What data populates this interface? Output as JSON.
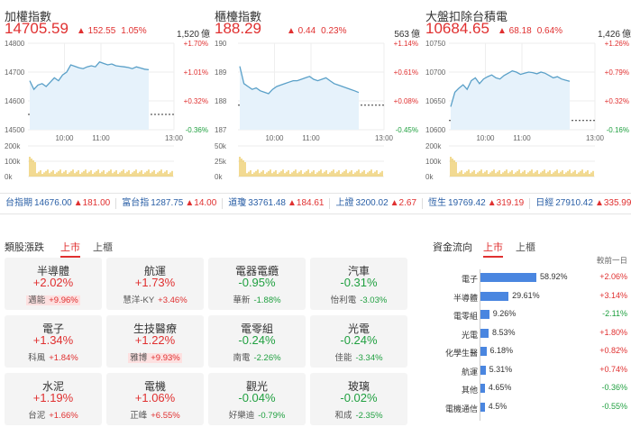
{
  "panels": [
    {
      "name": "加權指數",
      "price": "14705.59",
      "change": "▲ 152.55",
      "pct": "1.05%",
      "volume": "1,520",
      "volume_unit": "億",
      "price_axis": [
        "14800",
        "14700",
        "14600",
        "14500"
      ],
      "pct_axis": [
        "+1.70%",
        "+1.01%",
        "+0.32%",
        "-0.36%"
      ],
      "vol_axis": [
        "200k",
        "100k",
        "0k"
      ],
      "time_axis": [
        "10:00",
        "11:00",
        "13:00"
      ],
      "ymin": 14500,
      "ymax": 14800,
      "ref": 14553,
      "series": [
        14670,
        14640,
        14655,
        14660,
        14650,
        14665,
        14680,
        14670,
        14690,
        14700,
        14725,
        14720,
        14715,
        14712,
        14718,
        14722,
        14718,
        14735,
        14730,
        14725,
        14728,
        14722,
        14720,
        14718,
        14716,
        14712,
        14718,
        14714,
        14710,
        14708
      ]
    },
    {
      "name": "櫃檯指數",
      "price": "188.29",
      "change": "▲ 0.44",
      "pct": "0.23%",
      "volume": "563",
      "volume_unit": "億",
      "price_axis": [
        "190",
        "189",
        "188",
        "187"
      ],
      "pct_axis": [
        "+1.14%",
        "+0.61%",
        "+0.08%",
        "-0.45%"
      ],
      "vol_axis": [
        "50k",
        "25k",
        "0k"
      ],
      "time_axis": [
        "10:00",
        "11:00",
        "13:00"
      ],
      "ymin": 187,
      "ymax": 190,
      "ref": 187.85,
      "series": [
        189.2,
        188.6,
        188.5,
        188.4,
        188.45,
        188.35,
        188.3,
        188.25,
        188.4,
        188.5,
        188.55,
        188.6,
        188.65,
        188.7,
        188.7,
        188.75,
        188.8,
        188.85,
        188.75,
        188.7,
        188.75,
        188.8,
        188.7,
        188.6,
        188.55,
        188.5,
        188.45,
        188.4,
        188.35,
        188.29
      ]
    },
    {
      "name": "大盤扣除台積電",
      "price": "10684.65",
      "change": "▲ 68.18",
      "pct": "0.64%",
      "volume": "1,426",
      "volume_unit": "億",
      "price_axis": [
        "10750",
        "10700",
        "10650",
        "10600"
      ],
      "pct_axis": [
        "+1.26%",
        "+0.79%",
        "+0.32%",
        "-0.16%"
      ],
      "vol_axis": [
        "200k",
        "100k",
        "0k"
      ],
      "time_axis": [
        "10:00",
        "11:00",
        "13:00"
      ],
      "ymin": 10600,
      "ymax": 10750,
      "ref": 10616,
      "series": [
        10640,
        10665,
        10672,
        10678,
        10670,
        10685,
        10690,
        10680,
        10688,
        10692,
        10695,
        10690,
        10688,
        10694,
        10698,
        10702,
        10700,
        10696,
        10698,
        10700,
        10699,
        10697,
        10700,
        10698,
        10694,
        10690,
        10692,
        10688,
        10686,
        10684
      ]
    }
  ],
  "ticker": [
    {
      "name": "台指期",
      "value": "14676.00",
      "change": "▲181.00"
    },
    {
      "name": "富台指",
      "value": "1287.75",
      "change": "▲14.00"
    },
    {
      "name": "道瓊",
      "value": "33761.48",
      "change": "▲184.61"
    },
    {
      "name": "上證",
      "value": "3200.02",
      "change": "▲2.67"
    },
    {
      "name": "恆生",
      "value": "19769.42",
      "change": "▲319.19"
    },
    {
      "name": "日經",
      "value": "27910.42",
      "change": "▲335.99"
    }
  ],
  "sectors": {
    "title": "類股漲跌",
    "tabs": [
      "上市",
      "上櫃"
    ],
    "items": [
      {
        "name": "半導體",
        "pct": "+2.02%",
        "dir": "up",
        "stock": "邁能",
        "stock_pct": "+9.96%",
        "highlight": true
      },
      {
        "name": "航運",
        "pct": "+1.73%",
        "dir": "up",
        "stock": "慧洋-KY",
        "stock_pct": "+3.46%",
        "highlight": false
      },
      {
        "name": "電器電纜",
        "pct": "-0.95%",
        "dir": "dn",
        "stock": "華新",
        "stock_pct": "-1.88%",
        "highlight": false
      },
      {
        "name": "汽車",
        "pct": "-0.31%",
        "dir": "dn",
        "stock": "怡利電",
        "stock_pct": "-3.03%",
        "highlight": false
      },
      {
        "name": "電子",
        "pct": "+1.34%",
        "dir": "up",
        "stock": "科風",
        "stock_pct": "+1.84%",
        "highlight": false
      },
      {
        "name": "生技醫療",
        "pct": "+1.22%",
        "dir": "up",
        "stock": "雅博",
        "stock_pct": "+9.93%",
        "highlight": true
      },
      {
        "name": "電零組",
        "pct": "-0.24%",
        "dir": "dn",
        "stock": "南電",
        "stock_pct": "-2.26%",
        "highlight": false
      },
      {
        "name": "光電",
        "pct": "-0.24%",
        "dir": "dn",
        "stock": "佳能",
        "stock_pct": "-3.34%",
        "highlight": false
      },
      {
        "name": "水泥",
        "pct": "+1.19%",
        "dir": "up",
        "stock": "台泥",
        "stock_pct": "+1.66%",
        "highlight": false
      },
      {
        "name": "電機",
        "pct": "+1.06%",
        "dir": "up",
        "stock": "正峰",
        "stock_pct": "+6.55%",
        "highlight": false
      },
      {
        "name": "觀光",
        "pct": "-0.04%",
        "dir": "dn",
        "stock": "好樂迪",
        "stock_pct": "-0.79%",
        "highlight": false
      },
      {
        "name": "玻璃",
        "pct": "-0.02%",
        "dir": "dn",
        "stock": "和成",
        "stock_pct": "-2.35%",
        "highlight": false
      }
    ]
  },
  "fund_flow": {
    "title": "資金流向",
    "tabs": [
      "上市",
      "上櫃"
    ],
    "header": "較前一日",
    "rows": [
      {
        "name": "電子",
        "share": 58.92,
        "share_label": "58.92%",
        "change": "+2.06%",
        "dir": "up"
      },
      {
        "name": "半導體",
        "share": 29.61,
        "share_label": "29.61%",
        "change": "+3.14%",
        "dir": "up"
      },
      {
        "name": "電零組",
        "share": 9.26,
        "share_label": "9.26%",
        "change": "-2.11%",
        "dir": "dn"
      },
      {
        "name": "光電",
        "share": 8.53,
        "share_label": "8.53%",
        "change": "+1.80%",
        "dir": "up"
      },
      {
        "name": "化學生醫",
        "share": 6.18,
        "share_label": "6.18%",
        "change": "+0.82%",
        "dir": "up"
      },
      {
        "name": "航運",
        "share": 5.31,
        "share_label": "5.31%",
        "change": "+0.74%",
        "dir": "up"
      },
      {
        "name": "其他",
        "share": 4.65,
        "share_label": "4.65%",
        "change": "-0.36%",
        "dir": "dn"
      },
      {
        "name": "電機通信",
        "share": 4.5,
        "share_label": "4.5%",
        "change": "-0.55%",
        "dir": "dn"
      }
    ]
  },
  "colors": {
    "up": "#e03030",
    "down": "#20a040",
    "line": "#5aa0c8",
    "fill": "#e6f2fb",
    "volume": "#e8c24a",
    "bar": "#4a86e0"
  }
}
